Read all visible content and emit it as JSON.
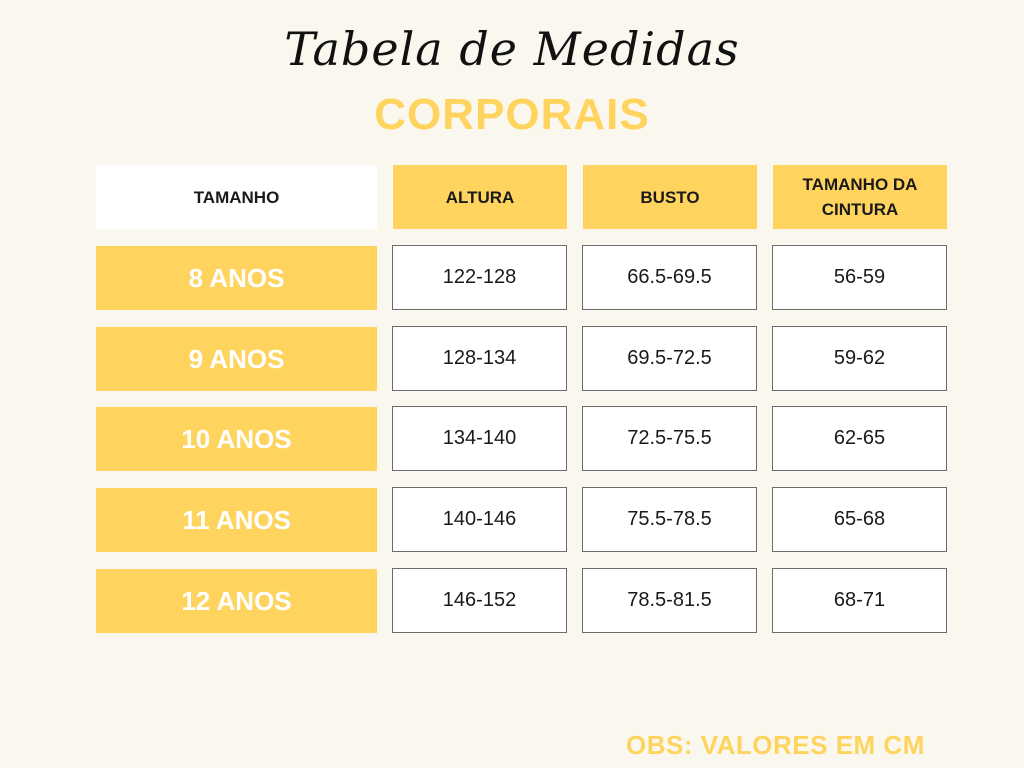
{
  "title": "Tabela de Medidas",
  "subtitle": "CORPORAIS",
  "table": {
    "headers": [
      "TAMANHO",
      "ALTURA",
      "BUSTO",
      "TAMANHO DA CINTURA"
    ],
    "rows": [
      {
        "size": "8 ANOS",
        "altura": "122-128",
        "busto": "66.5-69.5",
        "cintura": "56-59"
      },
      {
        "size": "9 ANOS",
        "altura": "128-134",
        "busto": "69.5-72.5",
        "cintura": "59-62"
      },
      {
        "size": "10 ANOS",
        "altura": "134-140",
        "busto": "72.5-75.5",
        "cintura": "62-65"
      },
      {
        "size": "11 ANOS",
        "altura": "140-146",
        "busto": "75.5-78.5",
        "cintura": "65-68"
      },
      {
        "size": "12 ANOS",
        "altura": "146-152",
        "busto": "78.5-81.5",
        "cintura": "68-71"
      }
    ]
  },
  "note": "OBS: VALORES EM CM",
  "colors": {
    "accent": "#ffd45e",
    "background": "#faf8ee",
    "text": "#1a1a1a"
  }
}
